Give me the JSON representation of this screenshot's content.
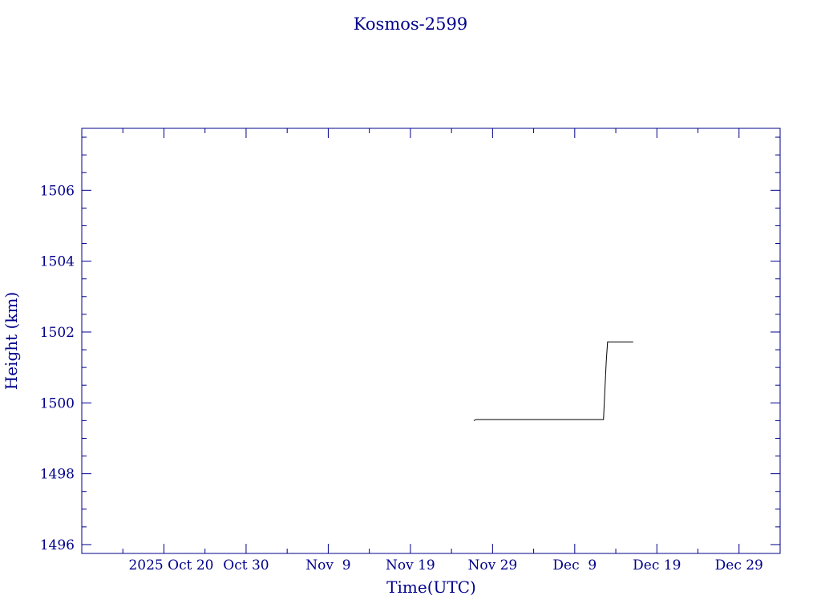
{
  "colors": {
    "axis": "#00008b",
    "text": "#00008b",
    "series": "#000000",
    "background": "#ffffff"
  },
  "chart_data": {
    "type": "line",
    "title": "Kosmos-2599",
    "xlabel": "Time(UTC)",
    "ylabel": "Height (km)",
    "grid": false,
    "legend": "none",
    "x_type": "date",
    "xlim": [
      "2025-10-10",
      "2026-01-03"
    ],
    "ylim": [
      1495.75,
      1507.75
    ],
    "x_ticks": [
      {
        "date": "2025-10-20",
        "label": "2025 Oct 20"
      },
      {
        "date": "2025-10-30",
        "label": "Oct 30"
      },
      {
        "date": "2025-11-09",
        "label": "Nov  9"
      },
      {
        "date": "2025-11-19",
        "label": "Nov 19"
      },
      {
        "date": "2025-11-29",
        "label": "Nov 29"
      },
      {
        "date": "2025-12-09",
        "label": "Dec  9"
      },
      {
        "date": "2025-12-19",
        "label": "Dec 19"
      },
      {
        "date": "2025-12-29",
        "label": "Dec 29"
      }
    ],
    "y_ticks": [
      {
        "value": 1496,
        "label": "1496"
      },
      {
        "value": 1498,
        "label": "1498"
      },
      {
        "value": 1500,
        "label": "1500"
      },
      {
        "value": 1502,
        "label": "1502"
      },
      {
        "value": 1504,
        "label": "1504"
      },
      {
        "value": 1506,
        "label": "1506"
      }
    ],
    "series": [
      {
        "points": [
          {
            "x": "2025-11-26T17:00",
            "y": 1499.5
          },
          {
            "x": "2025-11-27T00:00",
            "y": 1499.53
          },
          {
            "x": "2025-12-12T12:00",
            "y": 1499.53
          },
          {
            "x": "2025-12-12T20:00",
            "y": 1501.15
          },
          {
            "x": "2025-12-13T00:00",
            "y": 1501.72
          },
          {
            "x": "2025-12-16T03:00",
            "y": 1501.72
          }
        ]
      }
    ]
  }
}
